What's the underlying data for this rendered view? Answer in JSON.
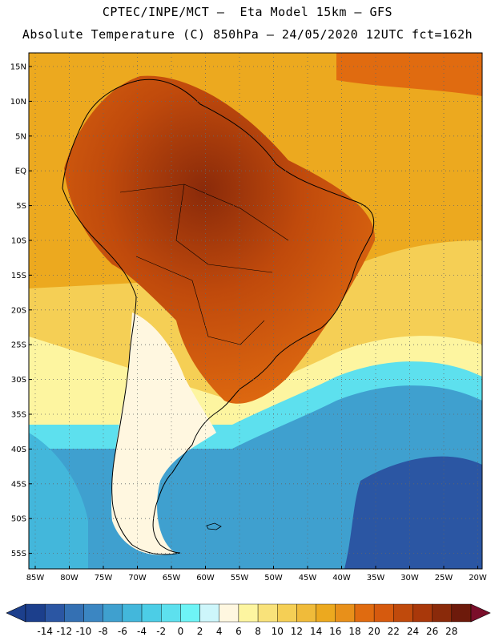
{
  "header": {
    "line1": "CPTEC/INPE/MCT –  Eta Model 15km – GFS",
    "line2": "Absolute Temperature (C) 850hPa – 24/05/2020 12UTC fct=162h"
  },
  "axes": {
    "lat_labels": [
      "15N",
      "10N",
      "5N",
      "EQ",
      "5S",
      "10S",
      "15S",
      "20S",
      "25S",
      "30S",
      "35S",
      "40S",
      "45S",
      "50S",
      "55S"
    ],
    "lon_labels": [
      "85W",
      "80W",
      "75W",
      "70W",
      "65W",
      "60W",
      "55W",
      "50W",
      "45W",
      "40W",
      "35W",
      "30W",
      "25W",
      "20W"
    ]
  },
  "colorbar": {
    "labels": [
      "-14",
      "-12",
      "-10",
      "-8",
      "-6",
      "-4",
      "-2",
      "0",
      "2",
      "4",
      "6",
      "8",
      "10",
      "12",
      "14",
      "16",
      "18",
      "20",
      "22",
      "24",
      "26",
      "28"
    ],
    "colors": [
      "#1c3f8c",
      "#2b56a3",
      "#3470b3",
      "#3b86c2",
      "#3fa0cf",
      "#43b7db",
      "#4ccde6",
      "#5de0ee",
      "#6ef4f6",
      "#cdf6fb",
      "#fff7e0",
      "#fdf5a0",
      "#f9e27a",
      "#f5cf55",
      "#f0bb3a",
      "#eca91f",
      "#e8901a",
      "#e06b10",
      "#d65a0e",
      "#c04a0c",
      "#a9380a",
      "#8a2a0a",
      "#6d1a0b"
    ]
  },
  "colors": {
    "ocean_north": "#eaa41c",
    "ocean_mid": "#f5cf55",
    "ocean_south": "#43b7db",
    "land_hot": "#c04a0c",
    "coast": "#000000"
  }
}
